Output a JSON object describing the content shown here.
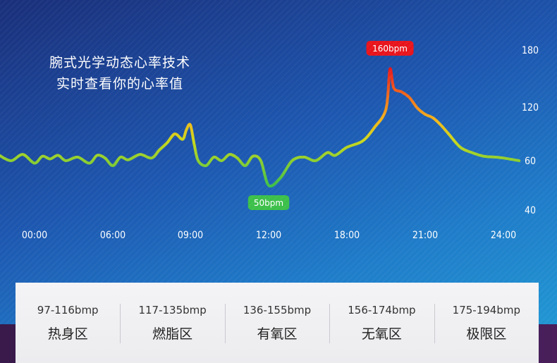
{
  "headline": {
    "line1": "腕式光学动态心率技术",
    "line2": "实时查看你的心率值"
  },
  "chart_data": {
    "type": "line",
    "title": "",
    "xlabel": "",
    "ylabel": "",
    "x_ticks": [
      "00:00",
      "06:00",
      "09:00",
      "12:00",
      "18:00",
      "21:00",
      "24:00"
    ],
    "y_ticks": [
      180,
      120,
      60,
      40
    ],
    "ylim": [
      40,
      180
    ],
    "grid": false,
    "legend": "none",
    "colors": {
      "low": "#3cc04a",
      "mid": "#e8d21c",
      "high": "#e8231c"
    },
    "annotations": [
      {
        "text": "160bpm",
        "tick_index": 4.55,
        "value": 160,
        "color": "#e8141c",
        "position": "above"
      },
      {
        "text": "50bpm",
        "tick_index": 3.0,
        "value": 50,
        "color": "#3cc04a",
        "position": "below"
      }
    ],
    "series": [
      {
        "values_by_tick_index": [
          [
            -0.45,
            66
          ],
          [
            -0.3,
            60
          ],
          [
            -0.15,
            67
          ],
          [
            0.0,
            59
          ],
          [
            0.1,
            65
          ],
          [
            0.2,
            62
          ],
          [
            0.3,
            66
          ],
          [
            0.4,
            60
          ],
          [
            0.55,
            64
          ],
          [
            0.7,
            59
          ],
          [
            0.8,
            66
          ],
          [
            0.9,
            63
          ],
          [
            1.0,
            58
          ],
          [
            1.1,
            64
          ],
          [
            1.2,
            61
          ],
          [
            1.35,
            67
          ],
          [
            1.5,
            63
          ],
          [
            1.6,
            72
          ],
          [
            1.7,
            80
          ],
          [
            1.8,
            90
          ],
          [
            1.9,
            84
          ],
          [
            1.95,
            95
          ],
          [
            2.0,
            100
          ],
          [
            2.05,
            78
          ],
          [
            2.1,
            60
          ],
          [
            2.2,
            58
          ],
          [
            2.3,
            64
          ],
          [
            2.4,
            60
          ],
          [
            2.5,
            67
          ],
          [
            2.6,
            63
          ],
          [
            2.7,
            58
          ],
          [
            2.8,
            65
          ],
          [
            2.9,
            60
          ],
          [
            3.0,
            50
          ],
          [
            3.15,
            53
          ],
          [
            3.3,
            60
          ],
          [
            3.45,
            64
          ],
          [
            3.6,
            60
          ],
          [
            3.75,
            69
          ],
          [
            3.85,
            66
          ],
          [
            4.0,
            75
          ],
          [
            4.2,
            82
          ],
          [
            4.35,
            97
          ],
          [
            4.5,
            118
          ],
          [
            4.55,
            160
          ],
          [
            4.6,
            140
          ],
          [
            4.7,
            136
          ],
          [
            4.8,
            130
          ],
          [
            4.9,
            119
          ],
          [
            5.0,
            112
          ],
          [
            5.1,
            108
          ],
          [
            5.2,
            100
          ],
          [
            5.3,
            90
          ],
          [
            5.45,
            75
          ],
          [
            5.6,
            69
          ],
          [
            5.75,
            65
          ],
          [
            5.9,
            64
          ],
          [
            6.0,
            63
          ],
          [
            6.2,
            60
          ]
        ]
      }
    ]
  },
  "zones": [
    {
      "range": "97-116bmp",
      "name": "热身区"
    },
    {
      "range": "117-135bmp",
      "name": "燃脂区"
    },
    {
      "range": "136-155bmp",
      "name": "有氧区"
    },
    {
      "range": "156-174bmp",
      "name": "无氧区"
    },
    {
      "range": "175-194bmp",
      "name": "极限区"
    }
  ]
}
